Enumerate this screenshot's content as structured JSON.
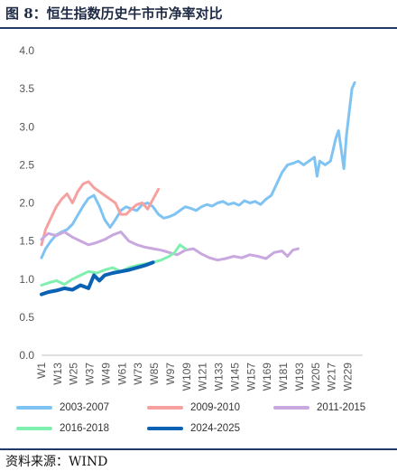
{
  "title": "图 8：恒生指数历史牛市市净率对比",
  "source": "资料来源：WIND",
  "chart_data": {
    "type": "line",
    "ylim": [
      0,
      4
    ],
    "yticks": [
      "0.0",
      "0.5",
      "1.0",
      "1.5",
      "2.0",
      "2.5",
      "3.0",
      "3.5",
      "4.0"
    ],
    "xlim": [
      1,
      240
    ],
    "xticks": [
      "W1",
      "W13",
      "W25",
      "W37",
      "W49",
      "W61",
      "W73",
      "W85",
      "W97",
      "W109",
      "W121",
      "W133",
      "W145",
      "W157",
      "W169",
      "W181",
      "W193",
      "W205",
      "W217",
      "W229"
    ],
    "legend_position": "bottom",
    "grid": false,
    "series": [
      {
        "name": "2003-2007",
        "color": "#7fc3f3",
        "x": [
          1,
          4,
          8,
          12,
          16,
          20,
          24,
          28,
          32,
          36,
          40,
          44,
          48,
          52,
          56,
          60,
          64,
          68,
          72,
          76,
          80,
          84,
          88,
          92,
          96,
          100,
          104,
          108,
          112,
          116,
          120,
          124,
          128,
          132,
          136,
          140,
          144,
          148,
          152,
          156,
          160,
          164,
          168,
          172,
          176,
          180,
          184,
          188,
          192,
          196,
          200,
          204,
          206,
          208,
          212,
          216,
          220,
          222,
          224,
          226,
          228,
          230,
          232,
          234
        ],
        "values": [
          1.28,
          1.4,
          1.5,
          1.58,
          1.62,
          1.65,
          1.72,
          1.84,
          1.96,
          2.06,
          2.1,
          1.96,
          1.78,
          1.68,
          1.78,
          1.9,
          1.95,
          1.92,
          1.9,
          1.98,
          2.0,
          1.95,
          1.85,
          1.8,
          1.82,
          1.85,
          1.9,
          1.95,
          1.93,
          1.9,
          1.95,
          1.98,
          1.96,
          2.0,
          2.02,
          1.98,
          2.0,
          1.97,
          2.03,
          2.0,
          2.02,
          1.98,
          2.05,
          2.1,
          2.25,
          2.4,
          2.5,
          2.52,
          2.55,
          2.5,
          2.55,
          2.6,
          2.35,
          2.55,
          2.5,
          2.55,
          2.85,
          2.95,
          2.7,
          2.45,
          2.9,
          3.2,
          3.5,
          3.58
        ]
      },
      {
        "name": "2009-2010",
        "color": "#f7a0a0",
        "x": [
          1,
          4,
          8,
          12,
          16,
          20,
          24,
          28,
          32,
          36,
          40,
          44,
          48,
          52,
          56,
          60,
          64,
          68,
          72,
          76,
          80,
          84,
          88
        ],
        "values": [
          1.45,
          1.65,
          1.8,
          1.95,
          2.05,
          2.12,
          2.0,
          2.15,
          2.25,
          2.28,
          2.2,
          2.15,
          2.1,
          2.05,
          2.0,
          1.85,
          1.85,
          1.92,
          1.98,
          2.0,
          1.92,
          2.05,
          2.18
        ]
      },
      {
        "name": "2011-2015",
        "color": "#c8a8df",
        "x": [
          1,
          6,
          12,
          18,
          24,
          30,
          36,
          42,
          48,
          54,
          60,
          66,
          72,
          78,
          84,
          90,
          96,
          102,
          108,
          114,
          120,
          126,
          132,
          138,
          144,
          150,
          156,
          162,
          168,
          174,
          180,
          184,
          188,
          192
        ],
        "values": [
          1.52,
          1.6,
          1.57,
          1.62,
          1.55,
          1.5,
          1.45,
          1.48,
          1.52,
          1.58,
          1.62,
          1.5,
          1.45,
          1.42,
          1.4,
          1.38,
          1.35,
          1.32,
          1.38,
          1.4,
          1.33,
          1.28,
          1.25,
          1.27,
          1.3,
          1.28,
          1.32,
          1.3,
          1.27,
          1.35,
          1.37,
          1.3,
          1.38,
          1.4
        ]
      },
      {
        "name": "2016-2018",
        "color": "#7ff0b0",
        "x": [
          1,
          6,
          12,
          18,
          24,
          30,
          36,
          42,
          48,
          54,
          60,
          66,
          72,
          78,
          84,
          90,
          96,
          100,
          104,
          108
        ],
        "values": [
          0.92,
          0.95,
          0.98,
          0.93,
          1.0,
          1.05,
          1.1,
          1.08,
          1.12,
          1.15,
          1.1,
          1.15,
          1.18,
          1.2,
          1.22,
          1.25,
          1.3,
          1.35,
          1.45,
          1.4
        ]
      },
      {
        "name": "2024-2025",
        "color": "#0a62b5",
        "x": [
          1,
          6,
          12,
          18,
          24,
          30,
          36,
          40,
          44,
          48,
          54,
          60,
          66,
          72,
          78,
          84
        ],
        "values": [
          0.8,
          0.83,
          0.85,
          0.88,
          0.86,
          0.92,
          0.88,
          1.05,
          0.98,
          1.05,
          1.08,
          1.1,
          1.12,
          1.15,
          1.18,
          1.22
        ]
      }
    ]
  }
}
